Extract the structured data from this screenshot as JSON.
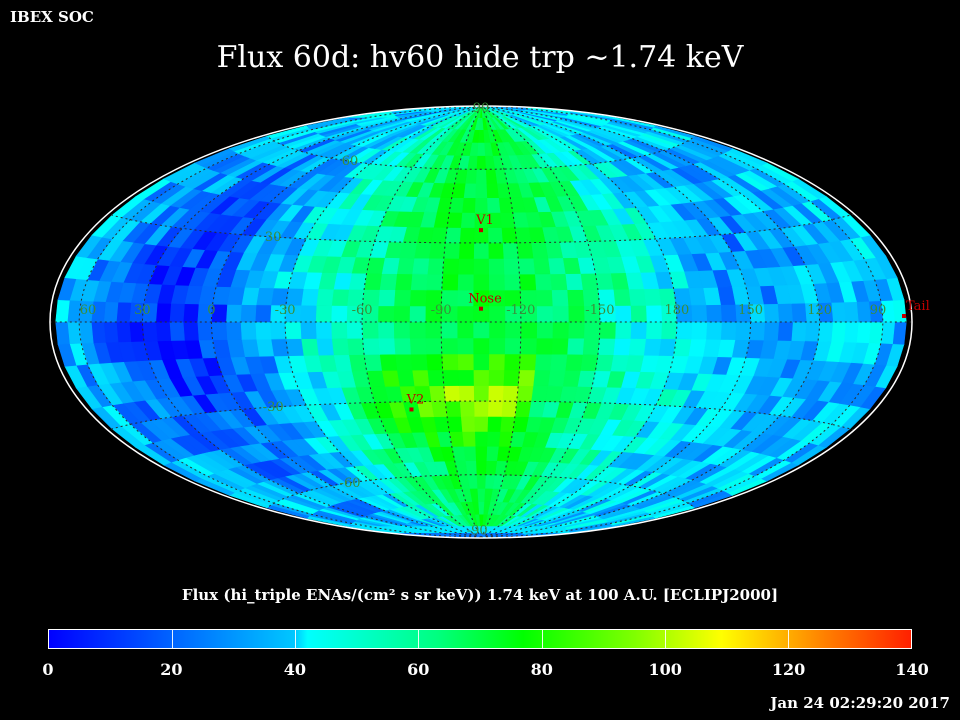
{
  "header": {
    "org": "IBEX SOC",
    "title": "Flux   60d: hv60 hide trp ~1.74 keV"
  },
  "colors": {
    "background": "#000000",
    "grid": "#2a2a2a",
    "marker": "#c00000",
    "label": "#3a8f3a"
  },
  "map": {
    "longitude_labels": [
      "60",
      "30",
      "0",
      "-30",
      "-60",
      "-90",
      "-120",
      "-150",
      "180",
      "150",
      "120",
      "90"
    ],
    "latitude_labels": [
      "60",
      "30",
      "-30",
      "-60"
    ],
    "north_label": "90",
    "south_label": "-90",
    "markers": [
      {
        "name": "V1"
      },
      {
        "name": "Nose"
      },
      {
        "name": "V2"
      },
      {
        "name": "Tail"
      }
    ]
  },
  "colorbar": {
    "title": "Flux (hi_triple ENAs/(cm² s sr keV))  1.74 keV at 100 A.U. [ECLIPJ2000]",
    "ticks": [
      "0",
      "20",
      "40",
      "60",
      "80",
      "100",
      "120",
      "140"
    ],
    "min": 0,
    "max": 140
  },
  "timestamp": "Jan 24 02:29:20 2017",
  "chart_data": {
    "type": "heatmap",
    "projection": "Aitoff/Hammer all-sky (ecliptic)",
    "title": "Flux   60d: hv60 hide trp ~1.74 keV",
    "colorbar_label": "Flux (hi_triple ENAs/(cm² s sr keV))  1.74 keV at 100 A.U. [ECLIPJ2000]",
    "value_range": [
      0,
      140
    ],
    "longitude_ticks": [
      60,
      30,
      0,
      -30,
      -60,
      -90,
      -120,
      -150,
      180,
      150,
      120,
      90
    ],
    "latitude_ticks": [
      90,
      60,
      30,
      -30,
      -60,
      -90
    ],
    "markers": [
      {
        "name": "V1",
        "lon": -105,
        "lat": 35
      },
      {
        "name": "Nose",
        "lon": -105,
        "lat": 5
      },
      {
        "name": "V2",
        "lon": -75,
        "lat": -33
      },
      {
        "name": "Tail",
        "lon": 75,
        "lat": -5
      }
    ],
    "regions": [
      {
        "description": "low flux lobe",
        "lon_range": [
          0,
          60
        ],
        "approx_value": 10
      },
      {
        "description": "high flux central band",
        "lon_range": [
          -150,
          -30
        ],
        "approx_value": 65
      },
      {
        "description": "medium flux",
        "lon_range": [
          90,
          180
        ],
        "approx_value": 35
      }
    ]
  }
}
